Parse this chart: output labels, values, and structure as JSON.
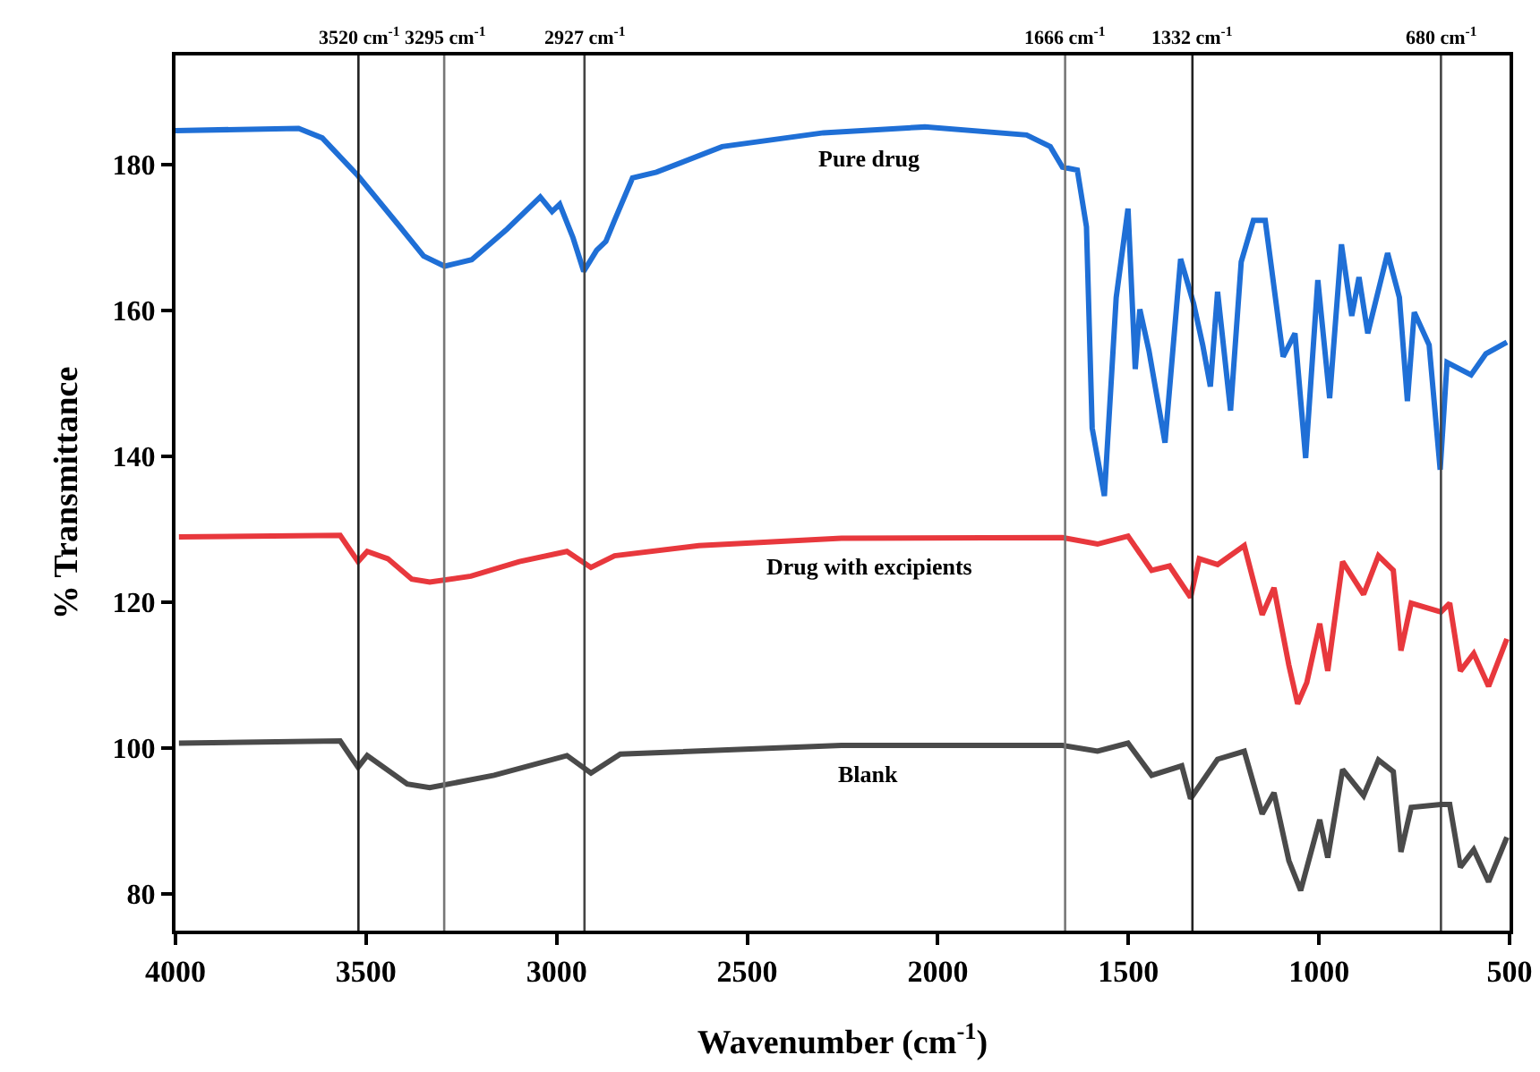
{
  "chart_data": {
    "type": "line",
    "xlabel": "Wavenumber (cm$^{-1}$)",
    "ylabel": "% Transmittance",
    "xlim": [
      4000,
      500
    ],
    "xticks": [
      4000,
      3500,
      3000,
      2500,
      2000,
      1500,
      1000,
      500
    ],
    "ylim": [
      75,
      195
    ],
    "yticks": [
      80,
      100,
      120,
      140,
      160,
      180
    ],
    "grid": false,
    "legend": false,
    "marker": "none",
    "line_style": "solid",
    "series": [
      {
        "name": "Pure drug",
        "color": "#1f6fd6",
        "x": [
          4000,
          3677,
          3615,
          3521,
          3411,
          3349,
          3294,
          3223,
          3130,
          3043,
          3012,
          2992,
          2957,
          2929,
          2895,
          2871,
          2848,
          2801,
          2738,
          2566,
          2300,
          2034,
          1767,
          1705,
          1673,
          1634,
          1610,
          1595,
          1563,
          1532,
          1501,
          1482,
          1470,
          1446,
          1404,
          1363,
          1329,
          1305,
          1285,
          1266,
          1232,
          1204,
          1172,
          1141,
          1094,
          1063,
          1035,
          1003,
          972,
          941,
          914,
          895,
          872,
          820,
          789,
          768,
          750,
          711,
          682,
          664,
          601,
          562,
          507
        ],
        "values": [
          184.7,
          185,
          183.7,
          178.5,
          171.5,
          167.5,
          166.1,
          167,
          171.2,
          175.6,
          173.6,
          174.6,
          170,
          165.4,
          168.3,
          169.5,
          172.4,
          178.2,
          179,
          182.5,
          184.4,
          185.2,
          184.1,
          182.5,
          179.7,
          179.3,
          171.5,
          143.9,
          134.6,
          161.8,
          174,
          152,
          160.2,
          154.5,
          141.9,
          167.1,
          161,
          155.3,
          149.6,
          162.6,
          146.3,
          166.7,
          172.4,
          172.4,
          153.7,
          156.9,
          139.8,
          164.2,
          148,
          169.1,
          159.3,
          164.6,
          156.9,
          167.9,
          161.8,
          147.6,
          159.8,
          155.3,
          138.2,
          152.9,
          151.2,
          154.1,
          155.7
        ]
      },
      {
        "name": "Drug with excipients",
        "color": "#e8383d",
        "x": [
          3991,
          3568,
          3521,
          3497,
          3443,
          3380,
          3333,
          3225,
          3098,
          2973,
          2910,
          2848,
          2627,
          2253,
          1673,
          1581,
          1501,
          1439,
          1392,
          1337,
          1314,
          1266,
          1196,
          1149,
          1118,
          1079,
          1056,
          1032,
          998,
          977,
          938,
          883,
          844,
          805,
          785,
          758,
          680,
          657,
          629,
          594,
          555,
          507
        ],
        "values": [
          129,
          129.2,
          125.6,
          127,
          126,
          123.2,
          122.8,
          123.6,
          125.6,
          127,
          124.8,
          126.4,
          127.8,
          128.8,
          128.9,
          128,
          129.1,
          124.4,
          125,
          120.7,
          126,
          125.2,
          127.8,
          118.3,
          122,
          111.4,
          106.1,
          109,
          117.1,
          110.6,
          125.6,
          121.1,
          126.4,
          124.4,
          113.4,
          119.9,
          118.7,
          119.9,
          110.6,
          113,
          108.5,
          115
        ]
      },
      {
        "name": "Blank",
        "color": "#4a4a4a",
        "x": [
          3991,
          3568,
          3521,
          3497,
          3392,
          3333,
          3164,
          2973,
          2910,
          2833,
          2253,
          1673,
          1581,
          1501,
          1439,
          1360,
          1337,
          1266,
          1196,
          1149,
          1118,
          1079,
          1048,
          998,
          977,
          938,
          883,
          844,
          805,
          785,
          758,
          680,
          657,
          629,
          594,
          555,
          507
        ],
        "values": [
          100.7,
          101,
          97.4,
          99,
          95.1,
          94.6,
          96.3,
          99,
          96.6,
          99.2,
          100.4,
          100.4,
          99.6,
          100.7,
          96.3,
          97.6,
          93.1,
          98.5,
          99.6,
          91,
          93.9,
          84.6,
          80.5,
          90.2,
          85,
          97.1,
          93.5,
          98.4,
          96.8,
          85.8,
          91.9,
          92.3,
          92.3,
          83.7,
          86.1,
          81.7,
          87.8
        ]
      }
    ],
    "ref_lines": [
      {
        "axis": "x",
        "value": 3520,
        "label": "3520 cm$^{-1}$",
        "color": "#222222"
      },
      {
        "axis": "x",
        "value": 3295,
        "label": "3295 cm$^{-1}$",
        "color": "#777777"
      },
      {
        "axis": "x",
        "value": 2927,
        "label": "2927 cm$^{-1}$",
        "color": "#444444"
      },
      {
        "axis": "x",
        "value": 1666,
        "label": "1666 cm$^{-1}$",
        "color": "#777777"
      },
      {
        "axis": "x",
        "value": 1332,
        "label": "1332 cm$^{-1}$",
        "color": "#222222"
      },
      {
        "axis": "x",
        "value": 680,
        "label": "680 cm$^{-1}$",
        "color": "#444444"
      }
    ]
  }
}
